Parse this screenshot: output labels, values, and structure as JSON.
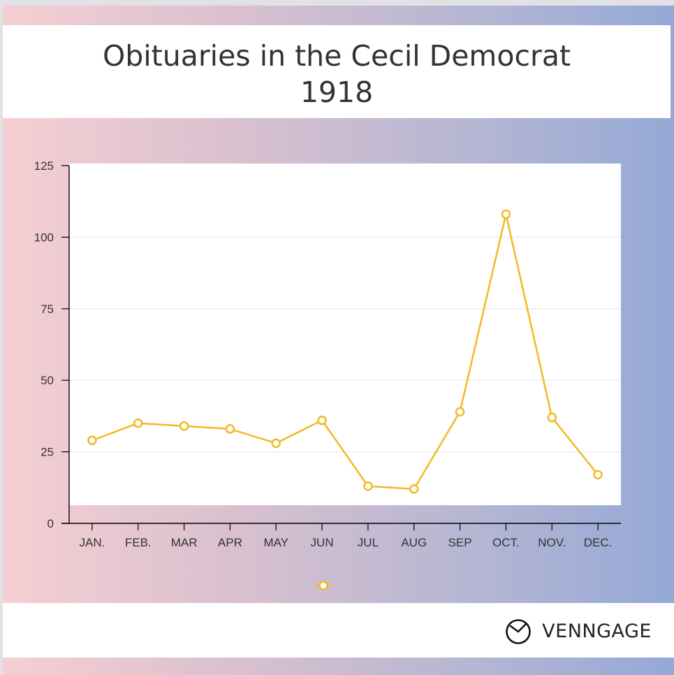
{
  "title_line1": "Obituaries in the Cecil Democrat",
  "title_line2": "1918",
  "brand": {
    "name": "VENNGAGE",
    "icon": "venngage-logo-icon"
  },
  "colors": {
    "line": "#f1bb2c",
    "grid": "#e4e4e4",
    "axis": "#000000"
  },
  "chart_data": {
    "type": "line",
    "categories": [
      "JAN.",
      "FEB.",
      "MAR",
      "APR",
      "MAY",
      "JUN",
      "JUL",
      "AUG",
      "SEP",
      "OCT.",
      "NOV.",
      "DEC."
    ],
    "series": [
      {
        "values": [
          29,
          35,
          34,
          33,
          28,
          36,
          13,
          12,
          39,
          108,
          37,
          17
        ]
      }
    ],
    "ylim": [
      0,
      125
    ],
    "yticks": [
      0,
      25,
      50,
      75,
      100,
      125
    ],
    "grid": true,
    "legend": "bottom-center"
  }
}
